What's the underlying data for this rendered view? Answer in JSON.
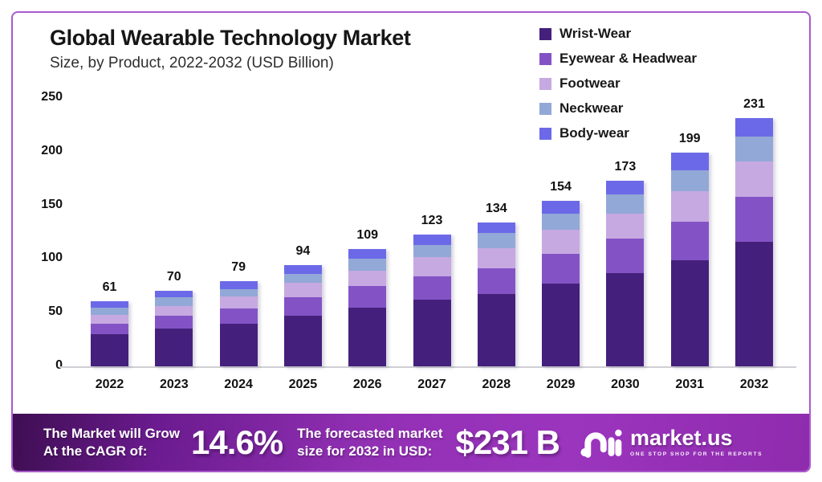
{
  "chart_data": {
    "type": "stacked_bar",
    "title": "Global Wearable Technology Market",
    "subtitle": "Size, by Product, 2022-2032 (USD Billion)",
    "categories": [
      "2022",
      "2023",
      "2024",
      "2025",
      "2026",
      "2027",
      "2028",
      "2029",
      "2030",
      "2031",
      "2032"
    ],
    "series": [
      {
        "name": "Wrist-Wear",
        "color": "#44207C",
        "values": [
          30,
          35,
          40,
          47,
          55,
          62,
          67,
          77,
          87,
          99,
          116
        ]
      },
      {
        "name": "Eyewear & Headwear",
        "color": "#8353C5",
        "values": [
          10,
          12,
          14,
          17,
          20,
          22,
          24,
          28,
          32,
          36,
          42
        ]
      },
      {
        "name": "Footwear",
        "color": "#C6A9E1",
        "values": [
          8,
          9,
          11,
          14,
          14,
          18,
          19,
          22,
          23,
          28,
          33
        ]
      },
      {
        "name": "Neckwear",
        "color": "#92A8D6",
        "values": [
          7,
          8,
          7,
          8,
          11,
          11,
          14,
          15,
          18,
          20,
          23
        ]
      },
      {
        "name": "Body-wear",
        "color": "#6C69E8",
        "values": [
          6,
          6,
          7,
          8,
          9,
          10,
          10,
          12,
          13,
          16,
          17
        ]
      }
    ],
    "totals": [
      61,
      70,
      79,
      94,
      109,
      123,
      134,
      154,
      173,
      199,
      231
    ],
    "ylim": [
      0,
      250
    ],
    "yticks": [
      0,
      50,
      100,
      150,
      200,
      250
    ],
    "grid": false,
    "legend_position": "top-right"
  },
  "banner": {
    "cagr_label_line1": "The Market will Grow",
    "cagr_label_line2": "At the CAGR of:",
    "cagr_value": "14.6%",
    "forecast_label_line1": "The forecasted market",
    "forecast_label_line2": "size for 2032 in USD:",
    "forecast_value": "$231 B",
    "brand": "market.us",
    "brand_tagline": "ONE STOP SHOP FOR THE REPORTS"
  },
  "colors": {
    "frame_border": "#A95ACB",
    "banner_gradient_start": "#3E0E52",
    "banner_gradient_end": "#8F2BAD",
    "text": "#111111"
  }
}
